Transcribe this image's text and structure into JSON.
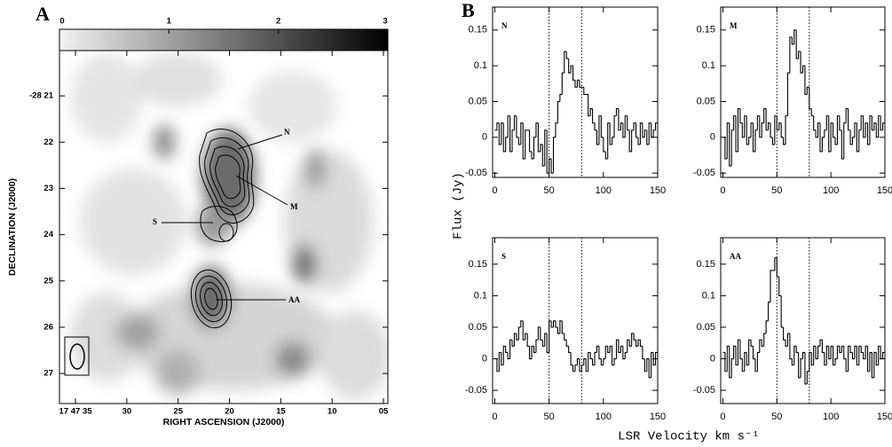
{
  "panel_labels": [
    "A",
    "B"
  ],
  "ylabel": "Flux (Jy)",
  "xlabel": "LSR Velocity km s⁻¹",
  "chart_data": [
    {
      "type": "image",
      "xlabel": "RIGHT ASCENSION (J2000)",
      "ylabel": "DECLINATION (J2000)",
      "xlim": [
        36.56,
        4.57
      ],
      "ylim": [
        20.02,
        27.65
      ],
      "xticks": [
        {
          "value": 35,
          "label": "17 47 35"
        },
        30,
        25,
        20,
        15,
        10,
        {
          "value": 5,
          "label": "05"
        }
      ],
      "yticks": [
        {
          "value": 21,
          "label": "-28 21"
        },
        22,
        23,
        24,
        25,
        26,
        27
      ],
      "colorbar": {
        "lim": [
          0,
          3
        ],
        "ticks": [
          0,
          1,
          2,
          3
        ]
      },
      "annotations": [
        "N",
        "M",
        "S",
        "AA"
      ]
    },
    {
      "type": "step",
      "xlim": [
        -2,
        150
      ],
      "ylim": [
        -0.056,
        0.182
      ],
      "xticks": [
        0,
        50,
        100,
        150
      ],
      "yticks": [
        -0.05,
        0,
        0.05,
        0.1,
        0.15
      ],
      "vlines": [
        50,
        80
      ],
      "x": [
        0,
        2,
        4,
        6,
        8,
        10,
        12,
        14,
        16,
        18,
        20,
        22,
        24,
        26,
        28,
        30,
        32,
        34,
        36,
        38,
        40,
        42,
        44,
        46,
        48,
        50,
        52,
        54,
        56,
        58,
        60,
        62,
        64,
        66,
        68,
        70,
        72,
        74,
        76,
        78,
        80,
        82,
        84,
        86,
        88,
        90,
        92,
        94,
        96,
        98,
        100,
        102,
        104,
        106,
        108,
        110,
        112,
        114,
        116,
        118,
        120,
        122,
        124,
        126,
        128,
        130,
        132,
        134,
        136,
        138,
        140,
        142,
        144,
        146,
        148
      ],
      "series": [
        {
          "name": "N",
          "color": "#000000",
          "values": [
            0.01,
            0.02,
            -0.01,
            0.02,
            -0.02,
            0.0,
            0.03,
            -0.02,
            0.01,
            0.03,
            0.0,
            -0.01,
            0.02,
            -0.03,
            0.01,
            0.01,
            -0.02,
            -0.03,
            0.0,
            0.02,
            -0.02,
            -0.01,
            -0.04,
            0.01,
            -0.05,
            -0.03,
            -0.05,
            0.0,
            0.02,
            0.05,
            0.06,
            0.09,
            0.12,
            0.11,
            0.09,
            0.1,
            0.08,
            0.07,
            0.08,
            0.07,
            0.07,
            0.06,
            0.06,
            0.03,
            0.04,
            0.02,
            0.01,
            -0.01,
            0.03,
            0.0,
            -0.02,
            -0.03,
            0.02,
            -0.01,
            0.0,
            0.03,
            0.04,
            0.01,
            0.02,
            0.0,
            0.03,
            0.01,
            -0.02,
            0.01,
            0.02,
            0.0,
            -0.01,
            0.02,
            0.0,
            0.01,
            -0.01,
            0.02,
            0.0,
            0.01,
            0.02
          ]
        }
      ]
    },
    {
      "type": "step",
      "xlim": [
        -2,
        150
      ],
      "ylim": [
        -0.056,
        0.182
      ],
      "xticks": [
        0,
        50,
        100,
        150
      ],
      "yticks": [
        -0.05,
        0,
        0.05,
        0.1,
        0.15
      ],
      "vlines": [
        50,
        80
      ],
      "x": [
        0,
        2,
        4,
        6,
        8,
        10,
        12,
        14,
        16,
        18,
        20,
        22,
        24,
        26,
        28,
        30,
        32,
        34,
        36,
        38,
        40,
        42,
        44,
        46,
        48,
        50,
        52,
        54,
        56,
        58,
        60,
        62,
        64,
        66,
        68,
        70,
        72,
        74,
        76,
        78,
        80,
        82,
        84,
        86,
        88,
        90,
        92,
        94,
        96,
        98,
        100,
        102,
        104,
        106,
        108,
        110,
        112,
        114,
        116,
        118,
        120,
        122,
        124,
        126,
        128,
        130,
        132,
        134,
        136,
        138,
        140,
        142,
        144,
        146,
        148
      ],
      "series": [
        {
          "name": "M",
          "color": "#000000",
          "values": [
            0.0,
            -0.03,
            0.02,
            -0.04,
            0.01,
            0.03,
            -0.02,
            0.04,
            0.02,
            0.0,
            0.03,
            -0.01,
            0.0,
            0.02,
            -0.02,
            0.01,
            0.03,
            0.0,
            0.02,
            0.04,
            0.01,
            0.02,
            0.0,
            -0.01,
            0.03,
            0.01,
            0.02,
            0.0,
            -0.01,
            0.03,
            0.09,
            0.14,
            0.13,
            0.15,
            0.11,
            0.12,
            0.09,
            0.1,
            0.06,
            0.07,
            0.04,
            0.03,
            0.01,
            0.0,
            0.02,
            -0.02,
            0.0,
            0.01,
            0.03,
            -0.02,
            0.02,
            0.0,
            -0.01,
            0.03,
            0.01,
            -0.03,
            0.02,
            0.04,
            0.01,
            -0.01,
            0.0,
            0.02,
            -0.02,
            0.01,
            0.03,
            0.0,
            0.02,
            -0.01,
            0.03,
            0.01,
            0.02,
            0.0,
            0.03,
            0.01,
            0.02
          ]
        }
      ]
    },
    {
      "type": "step",
      "xlim": [
        -2,
        150
      ],
      "ylim": [
        -0.071,
        0.192
      ],
      "xticks": [
        0,
        50,
        100,
        150
      ],
      "yticks": [
        -0.05,
        0,
        0.05,
        0.1,
        0.15
      ],
      "vlines": [
        50,
        80
      ],
      "x": [
        0,
        2,
        4,
        6,
        8,
        10,
        12,
        14,
        16,
        18,
        20,
        22,
        24,
        26,
        28,
        30,
        32,
        34,
        36,
        38,
        40,
        42,
        44,
        46,
        48,
        50,
        52,
        54,
        56,
        58,
        60,
        62,
        64,
        66,
        68,
        70,
        72,
        74,
        76,
        78,
        80,
        82,
        84,
        86,
        88,
        90,
        92,
        94,
        96,
        98,
        100,
        102,
        104,
        106,
        108,
        110,
        112,
        114,
        116,
        118,
        120,
        122,
        124,
        126,
        128,
        130,
        132,
        134,
        136,
        138,
        140,
        142,
        144,
        146,
        148
      ],
      "series": [
        {
          "name": "S",
          "color": "#000000",
          "values": [
            0.0,
            -0.02,
            0.01,
            -0.01,
            0.02,
            0.01,
            0.0,
            0.03,
            0.02,
            0.04,
            0.03,
            0.05,
            0.06,
            0.03,
            0.04,
            0.02,
            0.0,
            0.02,
            0.01,
            0.03,
            0.05,
            0.03,
            0.02,
            0.04,
            0.01,
            0.06,
            0.05,
            0.06,
            0.05,
            0.04,
            0.06,
            0.04,
            0.03,
            0.02,
            0.01,
            -0.01,
            -0.02,
            -0.01,
            0.0,
            -0.02,
            -0.01,
            0.0,
            -0.02,
            0.01,
            0.0,
            -0.01,
            0.01,
            0.02,
            0.0,
            -0.01,
            0.0,
            0.02,
            0.01,
            0.02,
            -0.01,
            0.0,
            0.03,
            0.01,
            0.02,
            0.0,
            0.01,
            0.03,
            0.02,
            0.04,
            0.03,
            0.02,
            0.03,
            0.02,
            0.0,
            -0.02,
            0.0,
            -0.03,
            0.01,
            -0.01,
            0.01
          ]
        }
      ]
    },
    {
      "type": "step",
      "xlim": [
        -2,
        150
      ],
      "ylim": [
        -0.071,
        0.192
      ],
      "xticks": [
        0,
        50,
        100,
        150
      ],
      "yticks": [
        -0.05,
        0,
        0.05,
        0.1,
        0.15
      ],
      "vlines": [
        50,
        80
      ],
      "x": [
        0,
        2,
        4,
        6,
        8,
        10,
        12,
        14,
        16,
        18,
        20,
        22,
        24,
        26,
        28,
        30,
        32,
        34,
        36,
        38,
        40,
        42,
        44,
        46,
        48,
        50,
        52,
        54,
        56,
        58,
        60,
        62,
        64,
        66,
        68,
        70,
        72,
        74,
        76,
        78,
        80,
        82,
        84,
        86,
        88,
        90,
        92,
        94,
        96,
        98,
        100,
        102,
        104,
        106,
        108,
        110,
        112,
        114,
        116,
        118,
        120,
        122,
        124,
        126,
        128,
        130,
        132,
        134,
        136,
        138,
        140,
        142,
        144,
        146,
        148
      ],
      "series": [
        {
          "name": "AA",
          "color": "#000000",
          "values": [
            0.01,
            -0.02,
            0.02,
            -0.03,
            0.0,
            0.02,
            -0.01,
            0.03,
            0.0,
            -0.02,
            0.01,
            -0.01,
            0.03,
            0.02,
            0.0,
            -0.02,
            0.01,
            0.03,
            0.02,
            0.04,
            0.06,
            0.09,
            0.14,
            0.14,
            0.16,
            0.13,
            0.1,
            0.05,
            0.03,
            0.02,
            0.04,
            0.0,
            -0.01,
            0.02,
            0.01,
            -0.03,
            0.0,
            0.01,
            -0.04,
            -0.02,
            0.01,
            -0.01,
            0.02,
            0.0,
            0.02,
            0.03,
            0.01,
            -0.01,
            0.02,
            0.0,
            0.02,
            -0.01,
            0.0,
            0.02,
            0.01,
            0.02,
            0.0,
            -0.02,
            0.02,
            0.01,
            0.0,
            0.02,
            -0.01,
            0.02,
            0.01,
            0.0,
            0.02,
            -0.02,
            0.01,
            -0.03,
            0.01,
            -0.01,
            0.02,
            0.0,
            0.01
          ]
        }
      ]
    }
  ]
}
